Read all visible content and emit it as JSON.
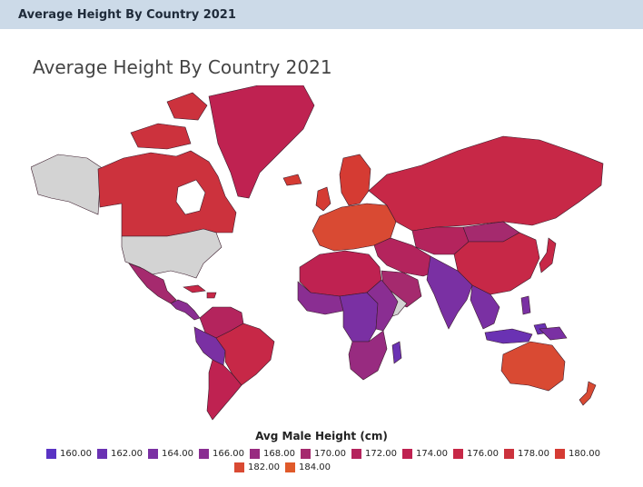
{
  "window": {
    "title": "Average Height By Country 2021"
  },
  "chart_data": {
    "type": "choropleth",
    "title": "Average Height By Country 2021",
    "legend_title": "Avg Male Height (cm)",
    "legend": [
      {
        "value": "160.00",
        "color": "#5a33c4"
      },
      {
        "value": "162.00",
        "color": "#6a32b3"
      },
      {
        "value": "164.00",
        "color": "#7a30a3"
      },
      {
        "value": "166.00",
        "color": "#8a2e92"
      },
      {
        "value": "168.00",
        "color": "#982b80"
      },
      {
        "value": "170.00",
        "color": "#a52a6e"
      },
      {
        "value": "172.00",
        "color": "#b4245d"
      },
      {
        "value": "174.00",
        "color": "#bf2251"
      },
      {
        "value": "176.00",
        "color": "#c72847"
      },
      {
        "value": "178.00",
        "color": "#cc323d"
      },
      {
        "value": "180.00",
        "color": "#d53b33"
      },
      {
        "value": "182.00",
        "color": "#d94a33"
      },
      {
        "value": "184.00",
        "color": "#e05a2a"
      }
    ],
    "no_data_color": "#d3d3d3",
    "regions": [
      {
        "name": "Alaska",
        "value": null
      },
      {
        "name": "Canada",
        "value": 178
      },
      {
        "name": "United States",
        "value": null
      },
      {
        "name": "Mexico",
        "value": 170
      },
      {
        "name": "Central America",
        "value": 166
      },
      {
        "name": "Greenland",
        "value": 174
      },
      {
        "name": "Iceland",
        "value": 180
      },
      {
        "name": "Colombia",
        "value": 172
      },
      {
        "name": "Venezuela",
        "value": 172
      },
      {
        "name": "Brazil",
        "value": 176
      },
      {
        "name": "Peru",
        "value": 164
      },
      {
        "name": "Bolivia",
        "value": 166
      },
      {
        "name": "Chile",
        "value": 174
      },
      {
        "name": "Argentina",
        "value": 174
      },
      {
        "name": "Europe",
        "value": 180
      },
      {
        "name": "Scandinavia",
        "value": 180
      },
      {
        "name": "Russia",
        "value": 176
      },
      {
        "name": "Kazakhstan",
        "value": 172
      },
      {
        "name": "Mongolia",
        "value": 170
      },
      {
        "name": "China",
        "value": 176
      },
      {
        "name": "Middle East",
        "value": 172
      },
      {
        "name": "Arabian Peninsula",
        "value": 170
      },
      {
        "name": "India",
        "value": 164
      },
      {
        "name": "Southeast Asia",
        "value": 164
      },
      {
        "name": "Indonesia",
        "value": 162
      },
      {
        "name": "Japan",
        "value": 176
      },
      {
        "name": "North Africa",
        "value": 174
      },
      {
        "name": "West Africa",
        "value": 166
      },
      {
        "name": "Central Africa",
        "value": 164
      },
      {
        "name": "East Africa",
        "value": 166
      },
      {
        "name": "Somalia",
        "value": null
      },
      {
        "name": "Southern Africa",
        "value": 168
      },
      {
        "name": "Madagascar",
        "value": 162
      },
      {
        "name": "Australia",
        "value": 180
      },
      {
        "name": "New Zealand",
        "value": 180
      },
      {
        "name": "Papua New Guinea",
        "value": 164
      }
    ]
  }
}
